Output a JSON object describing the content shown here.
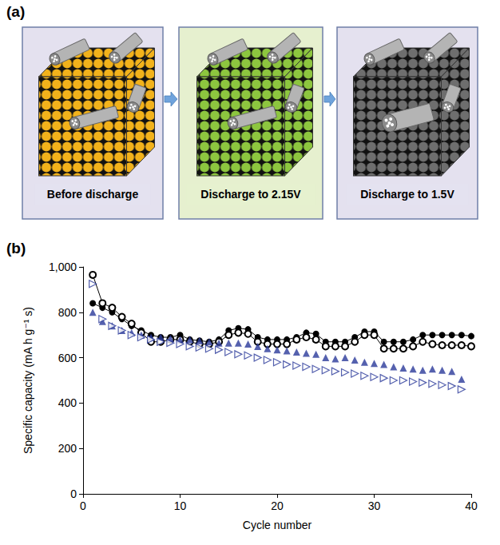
{
  "figure": {
    "panel_labels": [
      "(a)",
      "(b)"
    ]
  },
  "diagram": {
    "steps": [
      "Before discharge",
      "Discharge to 2.15V",
      "Discharge to 1.5V"
    ]
  },
  "chart_data": {
    "type": "line",
    "x_label": "Cycle number",
    "y_label": "Specific capacity (mA h g⁻¹ s)",
    "x": [
      1,
      2,
      3,
      4,
      5,
      6,
      7,
      8,
      9,
      10,
      11,
      12,
      13,
      14,
      15,
      16,
      17,
      18,
      19,
      20,
      21,
      22,
      23,
      24,
      25,
      26,
      27,
      28,
      29,
      30,
      31,
      32,
      33,
      34,
      35,
      36,
      37,
      38,
      39,
      40
    ],
    "series": [
      {
        "color": "#000000",
        "marker": "circle",
        "line_style": "solid",
        "values": [
          840,
          820,
          800,
          770,
          740,
          720,
          700,
          690,
          690,
          700,
          680,
          675,
          670,
          680,
          720,
          730,
          725,
          690,
          680,
          680,
          680,
          690,
          710,
          705,
          670,
          670,
          670,
          690,
          715,
          715,
          670,
          670,
          670,
          680,
          700,
          700,
          700,
          700,
          700,
          695
        ]
      },
      {
        "color": "#000000",
        "marker": "open_circle",
        "line_style": "solid",
        "values": [
          965,
          840,
          820,
          780,
          750,
          710,
          670,
          670,
          680,
          680,
          670,
          660,
          660,
          670,
          700,
          710,
          705,
          670,
          660,
          660,
          660,
          680,
          690,
          680,
          650,
          650,
          650,
          670,
          700,
          700,
          640,
          640,
          640,
          650,
          670,
          660,
          655,
          655,
          655,
          650
        ]
      },
      {
        "color": "#2b3a9a",
        "marker": "triangle",
        "line_style": "none",
        "values": [
          800,
          760,
          740,
          720,
          710,
          700,
          690,
          690,
          685,
          680,
          680,
          675,
          670,
          665,
          665,
          665,
          660,
          650,
          640,
          635,
          630,
          625,
          620,
          615,
          600,
          595,
          600,
          590,
          580,
          575,
          570,
          560,
          555,
          550,
          545,
          550,
          545,
          540,
          505,
          null
        ]
      },
      {
        "color": "#2b3a9a",
        "marker": "open_triangle_right",
        "line_style": "none",
        "values": [
          925,
          770,
          740,
          720,
          700,
          690,
          680,
          670,
          665,
          660,
          650,
          645,
          640,
          635,
          625,
          615,
          610,
          600,
          590,
          580,
          570,
          565,
          560,
          550,
          545,
          540,
          535,
          530,
          520,
          515,
          510,
          500,
          500,
          495,
          490,
          485,
          480,
          475,
          460,
          null
        ]
      }
    ],
    "xlim": [
      0,
      40
    ],
    "xticks": [
      0,
      10,
      20,
      30,
      40
    ],
    "ylim": [
      0,
      1000
    ],
    "yticks": [
      0,
      200,
      400,
      600,
      800,
      {
        "value": 1000,
        "label": "1,000"
      }
    ],
    "grid": false
  }
}
